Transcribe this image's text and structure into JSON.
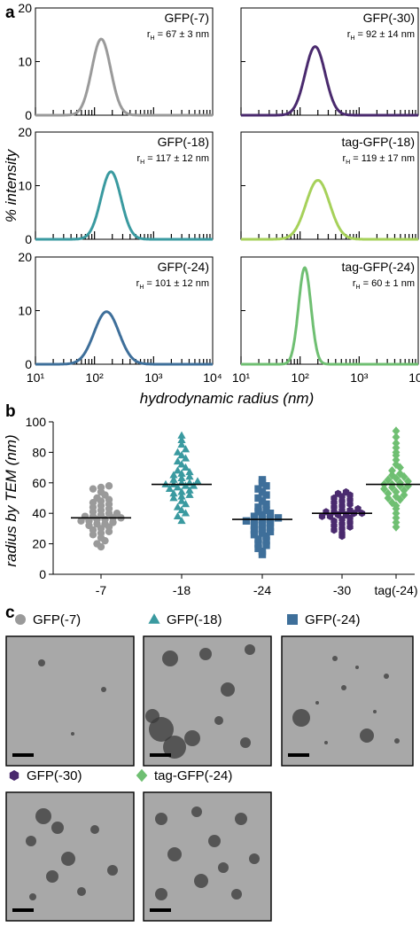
{
  "panels": {
    "a": "a",
    "b": "b",
    "c": "c"
  },
  "colors": {
    "GFP(-7)": "#9a9a9a",
    "GFP(-30)": "#4a2a6e",
    "GFP(-18)": "#3a9aa0",
    "tag-GFP(-18)": "#a6d15a",
    "GFP(-24)": "#3e6f9a",
    "tag-GFP(-24)": "#6fbf72",
    "median_line": "#000000",
    "tem_bg": "#a8a8a8"
  },
  "chart_data": [
    {
      "type": "line",
      "panel": "a",
      "xscale": "log",
      "xlim": [
        10,
        10000
      ],
      "ylim": [
        0,
        20
      ],
      "xticks": [
        "10¹",
        "10²",
        "10³",
        "10⁴"
      ],
      "yticks": [
        "0",
        "10",
        "20"
      ],
      "xlabel": "hydrodynamic radius (nm)",
      "ylabel": "% intensity",
      "subplots": [
        {
          "name": "GFP(-7)",
          "radius_label": "r",
          "radius_sub": "H",
          "radius_value": " = 67 ± 3 nm",
          "peak_x": 130,
          "peak_y": 14.2,
          "width_dex": 0.16,
          "color": "#9a9a9a"
        },
        {
          "name": "GFP(-30)",
          "radius_label": "r",
          "radius_sub": "H",
          "radius_value": " = 92 ± 14 nm",
          "peak_x": 180,
          "peak_y": 12.8,
          "width_dex": 0.17,
          "color": "#4a2a6e"
        },
        {
          "name": "GFP(-18)",
          "radius_label": "r",
          "radius_sub": "H",
          "radius_value": " = 117 ± 12 nm",
          "peak_x": 190,
          "peak_y": 12.6,
          "width_dex": 0.17,
          "color": "#3a9aa0"
        },
        {
          "name": "tag-GFP(-18)",
          "radius_label": "r",
          "radius_sub": "H",
          "radius_value": " = 119 ± 17 nm",
          "peak_x": 200,
          "peak_y": 11.0,
          "width_dex": 0.2,
          "color": "#a6d15a"
        },
        {
          "name": "GFP(-24)",
          "radius_label": "r",
          "radius_sub": "H",
          "radius_value": " = 101 ± 12 nm",
          "peak_x": 160,
          "peak_y": 9.8,
          "width_dex": 0.21,
          "color": "#3e6f9a"
        },
        {
          "name": "tag-GFP(-24)",
          "radius_label": "r",
          "radius_sub": "H",
          "radius_value": " = 60 ± 1 nm",
          "peak_x": 120,
          "peak_y": 18.0,
          "width_dex": 0.105,
          "color": "#6fbf72"
        }
      ]
    },
    {
      "type": "scatter",
      "panel": "b",
      "ylabel": "radius by TEM (nm)",
      "ylim": [
        0,
        100
      ],
      "yticks": [
        "0",
        "20",
        "40",
        "60",
        "80",
        "100"
      ],
      "categories": [
        "-7",
        "-18",
        "-24",
        "-30",
        "tag(-24)"
      ],
      "series": [
        {
          "category": "-7",
          "marker": "circle",
          "color": "#9a9a9a",
          "median": 37,
          "values": [
            18,
            20,
            22,
            24,
            26,
            27,
            28,
            29,
            30,
            31,
            32,
            33,
            33,
            34,
            35,
            35,
            36,
            36,
            37,
            37,
            38,
            38,
            39,
            40,
            40,
            41,
            42,
            43,
            44,
            45,
            46,
            47,
            48,
            49,
            50,
            52,
            54,
            56,
            57,
            58
          ]
        },
        {
          "category": "-18",
          "marker": "triangle",
          "color": "#3a9aa0",
          "median": 59,
          "values": [
            35,
            38,
            40,
            42,
            44,
            46,
            48,
            50,
            51,
            52,
            53,
            54,
            55,
            56,
            57,
            58,
            58,
            59,
            59,
            60,
            60,
            61,
            62,
            63,
            64,
            65,
            66,
            67,
            68,
            70,
            72,
            74,
            76,
            78,
            80,
            82,
            85,
            88,
            91
          ]
        },
        {
          "category": "-24",
          "marker": "square",
          "color": "#3e6f9a",
          "median": 36,
          "values": [
            13,
            15,
            17,
            19,
            20,
            22,
            23,
            25,
            26,
            27,
            28,
            29,
            30,
            31,
            32,
            33,
            34,
            35,
            35,
            36,
            36,
            37,
            38,
            39,
            40,
            41,
            42,
            44,
            46,
            48,
            50,
            52,
            54,
            56,
            58,
            60,
            62
          ]
        },
        {
          "category": "-30",
          "marker": "hexagon",
          "color": "#4a2a6e",
          "median": 40,
          "values": [
            25,
            27,
            29,
            30,
            31,
            32,
            33,
            34,
            35,
            36,
            37,
            38,
            38,
            39,
            39,
            40,
            40,
            41,
            41,
            42,
            42,
            43,
            44,
            45,
            46,
            47,
            48,
            49,
            50,
            51,
            52,
            53,
            54
          ]
        },
        {
          "category": "tag(-24)",
          "marker": "diamond",
          "color": "#6fbf72",
          "median": 59,
          "values": [
            31,
            34,
            37,
            40,
            43,
            45,
            47,
            49,
            50,
            51,
            52,
            53,
            54,
            55,
            56,
            57,
            58,
            58,
            59,
            59,
            60,
            61,
            62,
            63,
            64,
            65,
            66,
            68,
            70,
            72,
            75,
            78,
            80,
            83,
            86,
            90,
            94
          ]
        }
      ]
    }
  ],
  "tem_panels": [
    {
      "label": "GFP(-7)",
      "marker": "circle",
      "color": "#9a9a9a"
    },
    {
      "label": "GFP(-18)",
      "marker": "triangle",
      "color": "#3a9aa0"
    },
    {
      "label": "GFP(-24)",
      "marker": "square",
      "color": "#3e6f9a"
    },
    {
      "label": "GFP(-30)",
      "marker": "hexagon",
      "color": "#4a2a6e"
    },
    {
      "label": "tag-GFP(-24)",
      "marker": "diamond",
      "color": "#6fbf72"
    }
  ]
}
